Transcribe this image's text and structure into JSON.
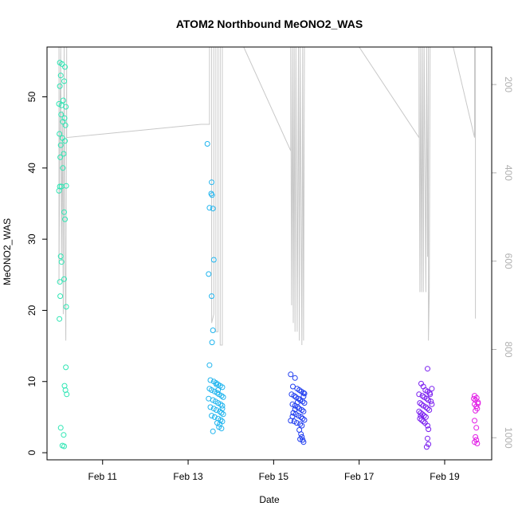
{
  "chart_data": {
    "type": "scatter",
    "title": "ATOM2 Northbound MeONO2_WAS",
    "xlabel": "Date",
    "ylabel": "MeONO2_WAS",
    "x_ticks": [
      "Feb 11",
      "Feb 13",
      "Feb 15",
      "Feb 17",
      "Feb 19"
    ],
    "x_tick_days": [
      11,
      13,
      15,
      17,
      19
    ],
    "xlim_days": [
      9.7,
      20.1
    ],
    "y_ticks": [
      0,
      10,
      20,
      30,
      40,
      50
    ],
    "ylim": [
      -1,
      57
    ],
    "y2_ticks": [
      200,
      400,
      600,
      800,
      1000
    ],
    "y2lim_reversed": [
      115,
      1050
    ],
    "colors": {
      "group1": "#2ee6b4",
      "group2": "#1eb4ee",
      "group3": "#1e3cf0",
      "group4": "#7a1ef0",
      "group5": "#e21ee6",
      "secondary_line": "#c8c8c8"
    },
    "groups": [
      {
        "color_key": "group1",
        "points": [
          [
            10.0,
            54.8
          ],
          [
            10.05,
            54.6
          ],
          [
            10.12,
            54.2
          ],
          [
            10.02,
            53.0
          ],
          [
            10.1,
            52.2
          ],
          [
            10.0,
            51.5
          ],
          [
            10.08,
            49.5
          ],
          [
            9.98,
            49.0
          ],
          [
            10.04,
            48.8
          ],
          [
            10.14,
            48.6
          ],
          [
            10.03,
            47.5
          ],
          [
            10.11,
            47.0
          ],
          [
            10.07,
            46.5
          ],
          [
            10.13,
            46.0
          ],
          [
            9.99,
            44.8
          ],
          [
            10.06,
            44.2
          ],
          [
            10.12,
            43.8
          ],
          [
            10.02,
            43.2
          ],
          [
            10.09,
            42.0
          ],
          [
            10.01,
            41.5
          ],
          [
            10.07,
            40.0
          ],
          [
            10.15,
            37.5
          ],
          [
            10.0,
            37.4
          ],
          [
            10.04,
            37.4
          ],
          [
            9.98,
            36.8
          ],
          [
            10.1,
            33.8
          ],
          [
            10.12,
            32.8
          ],
          [
            10.02,
            27.6
          ],
          [
            10.04,
            26.8
          ],
          [
            10.0,
            24.0
          ],
          [
            10.1,
            24.4
          ],
          [
            10.15,
            20.5
          ],
          [
            10.01,
            22.0
          ],
          [
            9.99,
            18.8
          ],
          [
            10.14,
            12.0
          ],
          [
            10.11,
            9.4
          ],
          [
            10.13,
            8.8
          ],
          [
            10.16,
            8.2
          ],
          [
            10.02,
            3.5
          ],
          [
            10.09,
            2.5
          ],
          [
            10.06,
            1.0
          ],
          [
            10.1,
            0.9
          ]
        ]
      },
      {
        "color_key": "group2",
        "points": [
          [
            13.45,
            43.4
          ],
          [
            13.55,
            38.0
          ],
          [
            13.54,
            36.4
          ],
          [
            13.56,
            36.2
          ],
          [
            13.5,
            34.4
          ],
          [
            13.58,
            34.3
          ],
          [
            13.6,
            27.1
          ],
          [
            13.48,
            25.1
          ],
          [
            13.55,
            22.0
          ],
          [
            13.58,
            17.2
          ],
          [
            13.56,
            15.5
          ],
          [
            13.5,
            12.3
          ],
          [
            13.52,
            10.2
          ],
          [
            13.6,
            10.0
          ],
          [
            13.65,
            9.8
          ],
          [
            13.7,
            9.6
          ],
          [
            13.75,
            9.4
          ],
          [
            13.8,
            9.2
          ],
          [
            13.5,
            9.0
          ],
          [
            13.55,
            8.8
          ],
          [
            13.62,
            8.6
          ],
          [
            13.68,
            8.4
          ],
          [
            13.72,
            8.2
          ],
          [
            13.78,
            8.0
          ],
          [
            13.82,
            7.8
          ],
          [
            13.48,
            7.6
          ],
          [
            13.58,
            7.4
          ],
          [
            13.64,
            7.2
          ],
          [
            13.7,
            7.0
          ],
          [
            13.76,
            6.8
          ],
          [
            13.8,
            6.6
          ],
          [
            13.52,
            6.4
          ],
          [
            13.6,
            6.2
          ],
          [
            13.66,
            6.0
          ],
          [
            13.74,
            5.8
          ],
          [
            13.78,
            5.6
          ],
          [
            13.82,
            5.4
          ],
          [
            13.55,
            5.2
          ],
          [
            13.62,
            5.0
          ],
          [
            13.7,
            4.8
          ],
          [
            13.76,
            4.6
          ],
          [
            13.8,
            4.4
          ],
          [
            13.68,
            4.2
          ],
          [
            13.74,
            4.0
          ],
          [
            13.72,
            3.6
          ],
          [
            13.78,
            3.4
          ],
          [
            13.58,
            3.0
          ],
          [
            13.8,
            6.2
          ],
          [
            13.7,
            8.8
          ],
          [
            13.66,
            9.6
          ]
        ]
      },
      {
        "color_key": "group3",
        "points": [
          [
            15.4,
            11.0
          ],
          [
            15.5,
            10.5
          ],
          [
            15.45,
            9.3
          ],
          [
            15.55,
            9.0
          ],
          [
            15.6,
            8.8
          ],
          [
            15.65,
            8.6
          ],
          [
            15.7,
            8.4
          ],
          [
            15.42,
            8.2
          ],
          [
            15.48,
            8.0
          ],
          [
            15.52,
            7.8
          ],
          [
            15.58,
            7.6
          ],
          [
            15.62,
            7.4
          ],
          [
            15.68,
            7.2
          ],
          [
            15.72,
            7.0
          ],
          [
            15.44,
            6.8
          ],
          [
            15.5,
            6.6
          ],
          [
            15.56,
            6.4
          ],
          [
            15.6,
            6.2
          ],
          [
            15.66,
            6.0
          ],
          [
            15.7,
            5.8
          ],
          [
            15.46,
            5.6
          ],
          [
            15.52,
            5.4
          ],
          [
            15.58,
            5.2
          ],
          [
            15.64,
            5.0
          ],
          [
            15.68,
            4.8
          ],
          [
            15.72,
            4.6
          ],
          [
            15.48,
            4.4
          ],
          [
            15.54,
            4.2
          ],
          [
            15.62,
            4.0
          ],
          [
            15.66,
            3.8
          ],
          [
            15.6,
            3.2
          ],
          [
            15.64,
            2.6
          ],
          [
            15.66,
            2.2
          ],
          [
            15.68,
            1.8
          ],
          [
            15.7,
            1.5
          ],
          [
            15.62,
            1.9
          ],
          [
            15.56,
            7.1
          ],
          [
            15.5,
            6.1
          ],
          [
            15.4,
            4.5
          ],
          [
            15.44,
            5.1
          ],
          [
            15.7,
            7.9
          ],
          [
            15.72,
            8.3
          ]
        ]
      },
      {
        "color_key": "group4",
        "points": [
          [
            18.6,
            11.8
          ],
          [
            18.45,
            9.7
          ],
          [
            18.5,
            9.3
          ],
          [
            18.7,
            9.0
          ],
          [
            18.55,
            8.8
          ],
          [
            18.6,
            8.6
          ],
          [
            18.65,
            8.4
          ],
          [
            18.4,
            8.2
          ],
          [
            18.48,
            8.0
          ],
          [
            18.52,
            7.8
          ],
          [
            18.58,
            7.6
          ],
          [
            18.62,
            7.4
          ],
          [
            18.68,
            7.2
          ],
          [
            18.42,
            7.0
          ],
          [
            18.46,
            6.8
          ],
          [
            18.5,
            6.6
          ],
          [
            18.56,
            6.4
          ],
          [
            18.6,
            6.2
          ],
          [
            18.64,
            6.0
          ],
          [
            18.4,
            5.8
          ],
          [
            18.44,
            5.6
          ],
          [
            18.48,
            5.4
          ],
          [
            18.52,
            5.2
          ],
          [
            18.56,
            5.0
          ],
          [
            18.42,
            4.8
          ],
          [
            18.46,
            4.6
          ],
          [
            18.5,
            4.4
          ],
          [
            18.54,
            4.2
          ],
          [
            18.6,
            3.8
          ],
          [
            18.62,
            3.3
          ],
          [
            18.6,
            2.0
          ],
          [
            18.62,
            1.2
          ],
          [
            18.58,
            0.8
          ],
          [
            18.7,
            6.8
          ],
          [
            18.66,
            8.2
          ],
          [
            18.44,
            5.2
          ]
        ]
      },
      {
        "color_key": "group5",
        "points": [
          [
            19.7,
            8.0
          ],
          [
            19.75,
            7.7
          ],
          [
            19.72,
            7.4
          ],
          [
            19.78,
            7.1
          ],
          [
            19.7,
            6.8
          ],
          [
            19.74,
            6.5
          ],
          [
            19.76,
            6.2
          ],
          [
            19.72,
            5.9
          ],
          [
            19.7,
            4.5
          ],
          [
            19.74,
            3.5
          ],
          [
            19.72,
            2.2
          ],
          [
            19.74,
            1.8
          ],
          [
            19.7,
            1.5
          ],
          [
            19.76,
            1.3
          ],
          [
            19.78,
            6.9
          ],
          [
            19.68,
            7.6
          ]
        ]
      }
    ],
    "secondary_line": [
      [
        9.98,
        -100
      ],
      [
        9.98,
        650
      ],
      [
        10.0,
        300
      ],
      [
        10.02,
        -100
      ],
      [
        10.04,
        600
      ],
      [
        10.06,
        260
      ],
      [
        10.08,
        720
      ],
      [
        10.1,
        -100
      ],
      [
        10.12,
        590
      ],
      [
        10.14,
        780
      ],
      [
        10.16,
        -100
      ],
      [
        10.16,
        320
      ],
      [
        13.3,
        290
      ],
      [
        13.5,
        290
      ],
      [
        13.5,
        115
      ],
      [
        13.55,
        115
      ],
      [
        13.55,
        740
      ],
      [
        13.6,
        720
      ],
      [
        13.6,
        115
      ],
      [
        13.65,
        115
      ],
      [
        13.65,
        760
      ],
      [
        13.7,
        760
      ],
      [
        13.7,
        115
      ],
      [
        13.75,
        115
      ],
      [
        13.75,
        790
      ],
      [
        13.8,
        790
      ],
      [
        13.8,
        115
      ],
      [
        14.3,
        115
      ],
      [
        15.4,
        350
      ],
      [
        15.4,
        115
      ],
      [
        15.42,
        700
      ],
      [
        15.44,
        115
      ],
      [
        15.46,
        740
      ],
      [
        15.48,
        115
      ],
      [
        15.5,
        760
      ],
      [
        15.52,
        115
      ],
      [
        15.55,
        760
      ],
      [
        15.58,
        115
      ],
      [
        15.6,
        780
      ],
      [
        15.62,
        115
      ],
      [
        15.66,
        790
      ],
      [
        15.68,
        115
      ],
      [
        15.7,
        780
      ],
      [
        15.72,
        115
      ],
      [
        17.0,
        115
      ],
      [
        18.4,
        320
      ],
      [
        18.4,
        115
      ],
      [
        18.42,
        670
      ],
      [
        18.44,
        115
      ],
      [
        18.46,
        670
      ],
      [
        18.48,
        115
      ],
      [
        18.5,
        670
      ],
      [
        18.52,
        115
      ],
      [
        18.56,
        670
      ],
      [
        18.58,
        115
      ],
      [
        18.6,
        590
      ],
      [
        18.62,
        115
      ],
      [
        18.62,
        780
      ],
      [
        18.64,
        670
      ],
      [
        18.66,
        115
      ],
      [
        19.2,
        115
      ],
      [
        19.7,
        320
      ],
      [
        19.7,
        115
      ],
      [
        19.72,
        115
      ],
      [
        19.72,
        730
      ]
    ]
  }
}
